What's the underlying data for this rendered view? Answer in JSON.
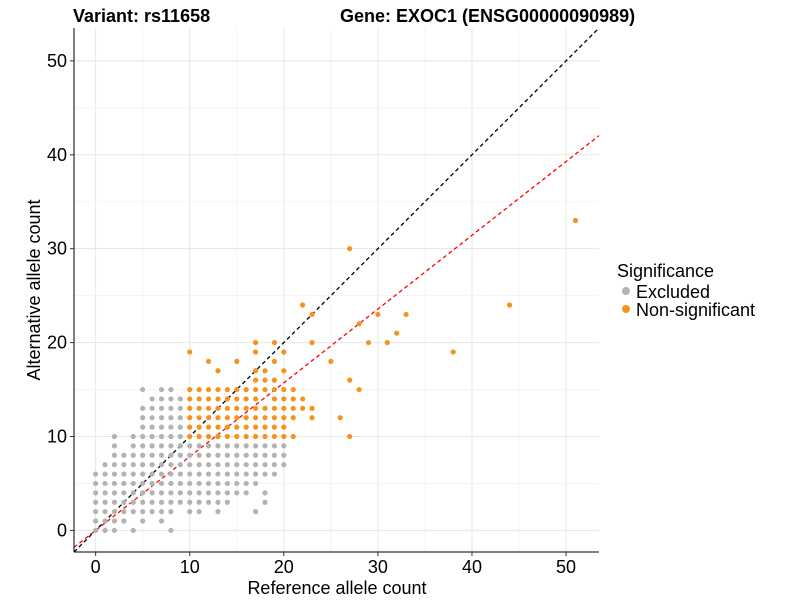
{
  "title_left": "Variant: rs11658",
  "title_right": "Gene: EXOC1 (ENSG00000090989)",
  "chart_data": {
    "type": "scatter",
    "xlabel": "Reference allele count",
    "ylabel": "Alternative allele count",
    "xlim": [
      -2.3,
      53.5
    ],
    "ylim": [
      -2.3,
      53.5
    ],
    "xticks": [
      0,
      10,
      20,
      30,
      40,
      50
    ],
    "yticks": [
      0,
      10,
      20,
      30,
      40,
      50
    ],
    "grid": true,
    "legend": {
      "title": "Significance",
      "placement": "right",
      "entries": [
        {
          "label": "Excluded",
          "color": "#b3b3b3"
        },
        {
          "label": "Non-significant",
          "color": "#f5931e"
        }
      ]
    },
    "reference_lines": [
      {
        "slope": 1,
        "intercept": 0,
        "color": "#000000",
        "style": "dashed"
      },
      {
        "slope": 0.7857,
        "intercept": 0,
        "color": "#ff0000",
        "style": "dashed"
      }
    ],
    "series": [
      {
        "name": "Excluded",
        "color": "#b3b3b3",
        "points": [
          [
            0,
            0
          ],
          [
            0,
            1
          ],
          [
            0,
            2
          ],
          [
            0,
            3
          ],
          [
            0,
            4
          ],
          [
            0,
            5
          ],
          [
            0,
            6
          ],
          [
            1,
            0
          ],
          [
            1,
            1
          ],
          [
            1,
            2
          ],
          [
            1,
            3
          ],
          [
            1,
            4
          ],
          [
            1,
            5
          ],
          [
            1,
            6
          ],
          [
            1,
            7
          ],
          [
            2,
            0
          ],
          [
            2,
            1
          ],
          [
            2,
            2
          ],
          [
            2,
            3
          ],
          [
            2,
            4
          ],
          [
            2,
            5
          ],
          [
            2,
            6
          ],
          [
            2,
            7
          ],
          [
            2,
            8
          ],
          [
            2,
            9
          ],
          [
            2,
            10
          ],
          [
            3,
            1
          ],
          [
            3,
            2
          ],
          [
            3,
            3
          ],
          [
            3,
            4
          ],
          [
            3,
            5
          ],
          [
            3,
            6
          ],
          [
            3,
            7
          ],
          [
            3,
            8
          ],
          [
            4,
            0
          ],
          [
            4,
            2
          ],
          [
            4,
            3
          ],
          [
            4,
            4
          ],
          [
            4,
            5
          ],
          [
            4,
            6
          ],
          [
            4,
            7
          ],
          [
            4,
            8
          ],
          [
            4,
            9
          ],
          [
            4,
            10
          ],
          [
            5,
            1
          ],
          [
            5,
            2
          ],
          [
            5,
            3
          ],
          [
            5,
            4
          ],
          [
            5,
            5
          ],
          [
            5,
            6
          ],
          [
            5,
            7
          ],
          [
            5,
            8
          ],
          [
            5,
            9
          ],
          [
            5,
            10
          ],
          [
            5,
            11
          ],
          [
            5,
            12
          ],
          [
            5,
            13
          ],
          [
            5,
            15
          ],
          [
            6,
            2
          ],
          [
            6,
            3
          ],
          [
            6,
            4
          ],
          [
            6,
            5
          ],
          [
            6,
            6
          ],
          [
            6,
            7
          ],
          [
            6,
            8
          ],
          [
            6,
            9
          ],
          [
            6,
            10
          ],
          [
            6,
            11
          ],
          [
            6,
            12
          ],
          [
            6,
            13
          ],
          [
            6,
            14
          ],
          [
            7,
            1
          ],
          [
            7,
            2
          ],
          [
            7,
            3
          ],
          [
            7,
            4
          ],
          [
            7,
            5
          ],
          [
            7,
            6
          ],
          [
            7,
            7
          ],
          [
            7,
            8
          ],
          [
            7,
            9
          ],
          [
            7,
            10
          ],
          [
            7,
            11
          ],
          [
            7,
            12
          ],
          [
            7,
            13
          ],
          [
            7,
            14
          ],
          [
            7,
            15
          ],
          [
            8,
            0
          ],
          [
            8,
            2
          ],
          [
            8,
            3
          ],
          [
            8,
            4
          ],
          [
            8,
            5
          ],
          [
            8,
            6
          ],
          [
            8,
            7
          ],
          [
            8,
            8
          ],
          [
            8,
            9
          ],
          [
            8,
            10
          ],
          [
            8,
            11
          ],
          [
            8,
            12
          ],
          [
            8,
            13
          ],
          [
            8,
            14
          ],
          [
            8,
            15
          ],
          [
            9,
            3
          ],
          [
            9,
            4
          ],
          [
            9,
            5
          ],
          [
            9,
            6
          ],
          [
            9,
            7
          ],
          [
            9,
            8
          ],
          [
            9,
            9
          ],
          [
            9,
            10
          ],
          [
            9,
            11
          ],
          [
            9,
            12
          ],
          [
            9,
            13
          ],
          [
            9,
            14
          ],
          [
            10,
            2
          ],
          [
            10,
            3
          ],
          [
            10,
            4
          ],
          [
            10,
            5
          ],
          [
            10,
            6
          ],
          [
            10,
            7
          ],
          [
            10,
            8
          ],
          [
            10,
            9
          ],
          [
            11,
            2
          ],
          [
            11,
            3
          ],
          [
            11,
            4
          ],
          [
            11,
            5
          ],
          [
            11,
            6
          ],
          [
            11,
            7
          ],
          [
            11,
            8
          ],
          [
            11,
            9
          ],
          [
            12,
            3
          ],
          [
            12,
            4
          ],
          [
            12,
            5
          ],
          [
            12,
            6
          ],
          [
            12,
            7
          ],
          [
            12,
            8
          ],
          [
            12,
            9
          ],
          [
            13,
            2
          ],
          [
            13,
            3
          ],
          [
            13,
            4
          ],
          [
            13,
            5
          ],
          [
            13,
            6
          ],
          [
            13,
            7
          ],
          [
            13,
            8
          ],
          [
            13,
            9
          ],
          [
            14,
            3
          ],
          [
            14,
            4
          ],
          [
            14,
            5
          ],
          [
            14,
            6
          ],
          [
            14,
            7
          ],
          [
            14,
            8
          ],
          [
            14,
            9
          ],
          [
            15,
            4
          ],
          [
            15,
            5
          ],
          [
            15,
            6
          ],
          [
            15,
            7
          ],
          [
            15,
            8
          ],
          [
            15,
            9
          ],
          [
            16,
            4
          ],
          [
            16,
            5
          ],
          [
            16,
            6
          ],
          [
            16,
            7
          ],
          [
            16,
            8
          ],
          [
            16,
            9
          ],
          [
            17,
            2
          ],
          [
            17,
            5
          ],
          [
            17,
            6
          ],
          [
            17,
            7
          ],
          [
            17,
            8
          ],
          [
            17,
            9
          ],
          [
            18,
            3
          ],
          [
            18,
            4
          ],
          [
            18,
            6
          ],
          [
            18,
            7
          ],
          [
            18,
            8
          ],
          [
            18,
            9
          ],
          [
            19,
            6
          ],
          [
            19,
            7
          ],
          [
            19,
            8
          ],
          [
            19,
            9
          ],
          [
            20,
            7
          ],
          [
            20,
            8
          ],
          [
            20,
            9
          ]
        ]
      },
      {
        "name": "Non-significant",
        "color": "#f5931e",
        "points": [
          [
            10,
            10
          ],
          [
            10,
            11
          ],
          [
            10,
            12
          ],
          [
            10,
            13
          ],
          [
            10,
            14
          ],
          [
            10,
            15
          ],
          [
            10,
            19
          ],
          [
            11,
            10
          ],
          [
            11,
            11
          ],
          [
            11,
            12
          ],
          [
            11,
            13
          ],
          [
            11,
            14
          ],
          [
            11,
            15
          ],
          [
            12,
            10
          ],
          [
            12,
            11
          ],
          [
            12,
            12
          ],
          [
            12,
            13
          ],
          [
            12,
            14
          ],
          [
            12,
            15
          ],
          [
            12,
            18
          ],
          [
            13,
            10
          ],
          [
            13,
            11
          ],
          [
            13,
            12
          ],
          [
            13,
            13
          ],
          [
            13,
            14
          ],
          [
            13,
            15
          ],
          [
            13,
            17
          ],
          [
            14,
            10
          ],
          [
            14,
            11
          ],
          [
            14,
            12
          ],
          [
            14,
            13
          ],
          [
            14,
            14
          ],
          [
            14,
            15
          ],
          [
            15,
            10
          ],
          [
            15,
            11
          ],
          [
            15,
            12
          ],
          [
            15,
            13
          ],
          [
            15,
            14
          ],
          [
            15,
            15
          ],
          [
            15,
            18
          ],
          [
            16,
            10
          ],
          [
            16,
            11
          ],
          [
            16,
            12
          ],
          [
            16,
            13
          ],
          [
            16,
            14
          ],
          [
            16,
            15
          ],
          [
            17,
            10
          ],
          [
            17,
            11
          ],
          [
            17,
            12
          ],
          [
            17,
            13
          ],
          [
            17,
            14
          ],
          [
            17,
            15
          ],
          [
            17,
            16
          ],
          [
            17,
            17
          ],
          [
            17,
            19
          ],
          [
            17,
            20
          ],
          [
            18,
            10
          ],
          [
            18,
            11
          ],
          [
            18,
            12
          ],
          [
            18,
            13
          ],
          [
            18,
            15
          ],
          [
            18,
            16
          ],
          [
            18,
            17
          ],
          [
            19,
            10
          ],
          [
            19,
            11
          ],
          [
            19,
            12
          ],
          [
            19,
            13
          ],
          [
            19,
            14
          ],
          [
            19,
            15
          ],
          [
            19,
            16
          ],
          [
            19,
            18
          ],
          [
            19,
            20
          ],
          [
            20,
            10
          ],
          [
            20,
            11
          ],
          [
            20,
            12
          ],
          [
            20,
            13
          ],
          [
            20,
            14
          ],
          [
            20,
            15
          ],
          [
            20,
            17
          ],
          [
            20,
            19
          ],
          [
            21,
            10
          ],
          [
            21,
            12
          ],
          [
            21,
            13
          ],
          [
            21,
            14
          ],
          [
            21,
            15
          ],
          [
            22,
            13
          ],
          [
            22,
            14
          ],
          [
            22,
            24
          ],
          [
            23,
            12
          ],
          [
            23,
            13
          ],
          [
            23,
            20
          ],
          [
            23,
            23
          ],
          [
            25,
            18
          ],
          [
            26,
            12
          ],
          [
            27,
            10
          ],
          [
            27,
            16
          ],
          [
            27,
            30
          ],
          [
            28,
            15
          ],
          [
            28,
            22
          ],
          [
            29,
            20
          ],
          [
            30,
            23
          ],
          [
            31,
            20
          ],
          [
            32,
            21
          ],
          [
            33,
            23
          ],
          [
            38,
            19
          ],
          [
            44,
            24
          ],
          [
            51,
            33
          ]
        ]
      }
    ]
  }
}
